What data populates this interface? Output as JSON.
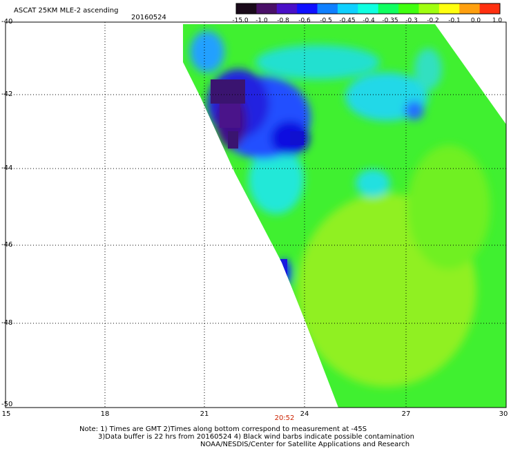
{
  "header": {
    "title": "ASCAT 25KM MLE-2 ascending",
    "date": "20160524"
  },
  "colorbar": {
    "labels": [
      "-15.0",
      "-1.0",
      "-0.8",
      "-0.6",
      "-0.5",
      "-0.45",
      "-0.4",
      "-0.35",
      "-0.3",
      "-0.2",
      "-0.1",
      "0.0",
      "1.0"
    ],
    "colors": [
      "#1a0a1a",
      "#4a1068",
      "#4a10c8",
      "#1010ff",
      "#1080ff",
      "#10d0ff",
      "#10ffe0",
      "#10ff60",
      "#40ff10",
      "#a0ff10",
      "#ffff10",
      "#ffa010",
      "#ff3010"
    ]
  },
  "map": {
    "lat_labels": [
      "-40",
      "-42",
      "-44",
      "-46",
      "-48",
      "-50"
    ],
    "lon_labels": [
      "15",
      "18",
      "21",
      "24",
      "27",
      "30"
    ],
    "time_label": "20:52"
  },
  "notes": {
    "line1": "Note: 1) Times are GMT 2)Times along bottom correspond to measurement at -45S",
    "line2": "3)Data buffer is 22 hrs from 20160524 4) Black wind barbs indicate possible contamination",
    "line3": "NOAA/NESDIS/Center for Satellite Applications and Research"
  }
}
